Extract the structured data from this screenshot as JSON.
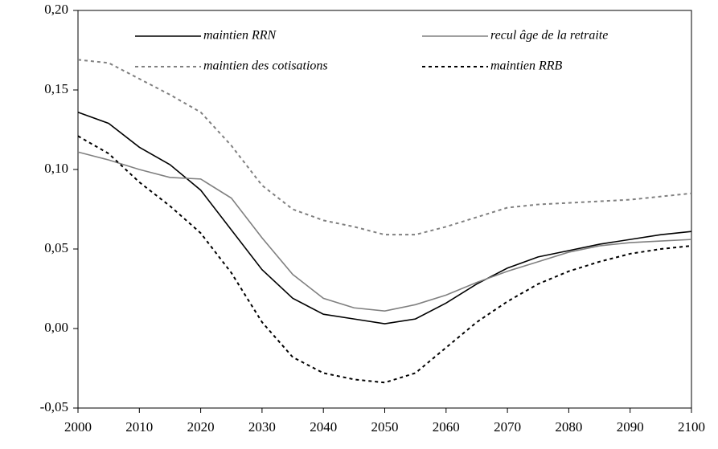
{
  "chart_data": {
    "type": "line",
    "x": [
      2000,
      2005,
      2010,
      2015,
      2020,
      2025,
      2030,
      2035,
      2040,
      2045,
      2050,
      2055,
      2060,
      2065,
      2070,
      2075,
      2080,
      2085,
      2090,
      2095,
      2100
    ],
    "series": [
      {
        "name": "maintien RRN",
        "color": "#000000",
        "dash": false,
        "values": [
          0.136,
          0.129,
          0.114,
          0.103,
          0.087,
          0.062,
          0.037,
          0.019,
          0.009,
          0.006,
          0.003,
          0.006,
          0.016,
          0.028,
          0.038,
          0.045,
          0.049,
          0.053,
          0.056,
          0.059,
          0.061
        ]
      },
      {
        "name": "recul âge de la retraite",
        "color": "#808080",
        "dash": false,
        "values": [
          0.111,
          0.106,
          0.1,
          0.095,
          0.094,
          0.082,
          0.057,
          0.034,
          0.019,
          0.013,
          0.011,
          0.015,
          0.021,
          0.029,
          0.036,
          0.042,
          0.048,
          0.052,
          0.054,
          0.055,
          0.056
        ]
      },
      {
        "name": "maintien des cotisations",
        "color": "#808080",
        "dash": true,
        "values": [
          0.169,
          0.167,
          0.157,
          0.147,
          0.136,
          0.115,
          0.09,
          0.075,
          0.068,
          0.064,
          0.059,
          0.059,
          0.064,
          0.07,
          0.076,
          0.078,
          0.079,
          0.08,
          0.081,
          0.083,
          0.085
        ]
      },
      {
        "name": "maintien RRB",
        "color": "#000000",
        "dash": true,
        "values": [
          0.121,
          0.11,
          0.092,
          0.077,
          0.06,
          0.035,
          0.004,
          -0.018,
          -0.028,
          -0.032,
          -0.034,
          -0.028,
          -0.012,
          0.004,
          0.017,
          0.028,
          0.036,
          0.042,
          0.047,
          0.05,
          0.052
        ]
      }
    ],
    "xlim": [
      2000,
      2100
    ],
    "xticks": [
      2000,
      2010,
      2020,
      2030,
      2040,
      2050,
      2060,
      2070,
      2080,
      2090,
      2100
    ],
    "ylim": [
      -0.05,
      0.2
    ],
    "yticks": [
      {
        "value": -0.05,
        "label": "-0,05"
      },
      {
        "value": 0,
        "label": "0,00"
      },
      {
        "value": 0.05,
        "label": "0,05"
      },
      {
        "value": 0.1,
        "label": "0,10"
      },
      {
        "value": 0.15,
        "label": "0,15"
      },
      {
        "value": 0.2,
        "label": "0,20"
      }
    ],
    "grid": false
  }
}
